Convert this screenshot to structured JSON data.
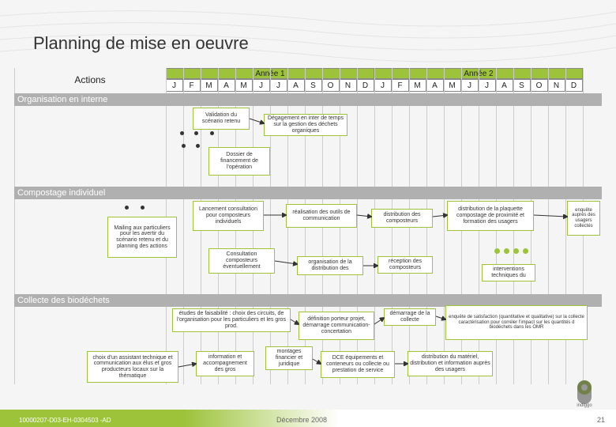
{
  "title": "Planning de mise en oeuvre",
  "header": {
    "actions": "Actions",
    "year1": "Année 1",
    "year2": "Année 2",
    "months": [
      "J",
      "F",
      "M",
      "A",
      "M",
      "J",
      "J",
      "A",
      "S",
      "O",
      "N",
      "D"
    ]
  },
  "sections": {
    "s1": "Organisation en interne",
    "s2": "Compostage individuel",
    "s3": "Collecte des biodéchets"
  },
  "tasks": {
    "t1": "Validation du scénario retenu",
    "t2": "Dégagement en inter de temps sur la gestion des déchets organiques",
    "t3": "Dossier de financement de l'opération",
    "t4": "Lancement consultation pour composteurs individuels",
    "t5": "Mailing aux particuliers pour les avertir du scénario retenu et du planning des actions",
    "t6": "réalisation des outils de communication",
    "t7": "distribution des composteurs",
    "t8": "distribution de la plaquette compostage de proximité et formation des usagers",
    "t9": "enquête auprès des usagers collectés",
    "t10": "Consultation composteurs éventuellement",
    "t11": "organisation de la distribution des",
    "t12": "réception des composteurs",
    "t13": "interventions techniques du",
    "t14": "études de faisabilité : choix des circuits, de l'organisation pour les particuliers et les gros prod.",
    "t15": "définition porteur projet, démarrage communication-concertation",
    "t16": "démarrage de la collecte",
    "t17": "enquête de satisfaction (quantitative et qualitative) sur la collecte caractérisation pour corréler l'impact sur les quantités d biodéchets dans les OMR",
    "t18": "choix d'un assistant technique et communication aux élus et gros producteurs locaux sur la thématique",
    "t19": "information et accompagnement des gros",
    "t20": "montages financier et juridique",
    "t21": "DCE équipements et conteneurs ou collecte ou prestation de service",
    "t22": "distribution du matériel, distribution et information auprès des usagers"
  },
  "footer": {
    "left": "10000207-D03-EH-0304503 -AD",
    "center": "Décembre 2008",
    "page": "21",
    "logo_label": "indiggo"
  },
  "colors": {
    "green": "#9dc33b",
    "grey": "#b0b0b0",
    "bg": "#f5f5f5"
  },
  "layout": {
    "actions_col_width": 192,
    "month_width": 22,
    "year_start_x": 192
  }
}
